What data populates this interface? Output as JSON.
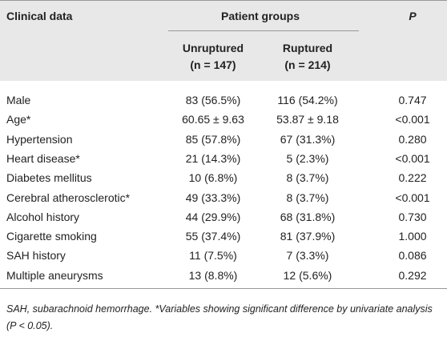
{
  "table": {
    "header": [
      "Clinical data",
      "Patient groups",
      "P"
    ],
    "subheader": [
      {
        "name": "Unruptured",
        "n": "(n = 147)"
      },
      {
        "name": "Ruptured",
        "n": "(n = 214)"
      }
    ],
    "rows": [
      [
        "Male",
        "83 (56.5%)",
        "116 (54.2%)",
        "0.747"
      ],
      [
        "Age*",
        "60.65 ± 9.63",
        "53.87 ± 9.18",
        "<0.001"
      ],
      [
        "Hypertension",
        "85 (57.8%)",
        "67 (31.3%)",
        "0.280"
      ],
      [
        "Heart disease*",
        "21 (14.3%)",
        "5 (2.3%)",
        "<0.001"
      ],
      [
        "Diabetes mellitus",
        "10 (6.8%)",
        "8 (3.7%)",
        "0.222"
      ],
      [
        "Cerebral atherosclerotic*",
        "49 (33.3%)",
        "8 (3.7%)",
        "<0.001"
      ],
      [
        "Alcohol history",
        "44 (29.9%)",
        "68 (31.8%)",
        "0.730"
      ],
      [
        "Cigarette smoking",
        "55 (37.4%)",
        "81 (37.9%)",
        "1.000"
      ],
      [
        "SAH history",
        "11 (7.5%)",
        "7 (3.3%)",
        "0.086"
      ],
      [
        "Multiple aneurysms",
        "13 (8.8%)",
        "12 (5.6%)",
        "0.292"
      ]
    ]
  },
  "footnote": "SAH, subarachnoid hemorrhage. *Variables showing significant difference by univariate analysis (P < 0.05)."
}
